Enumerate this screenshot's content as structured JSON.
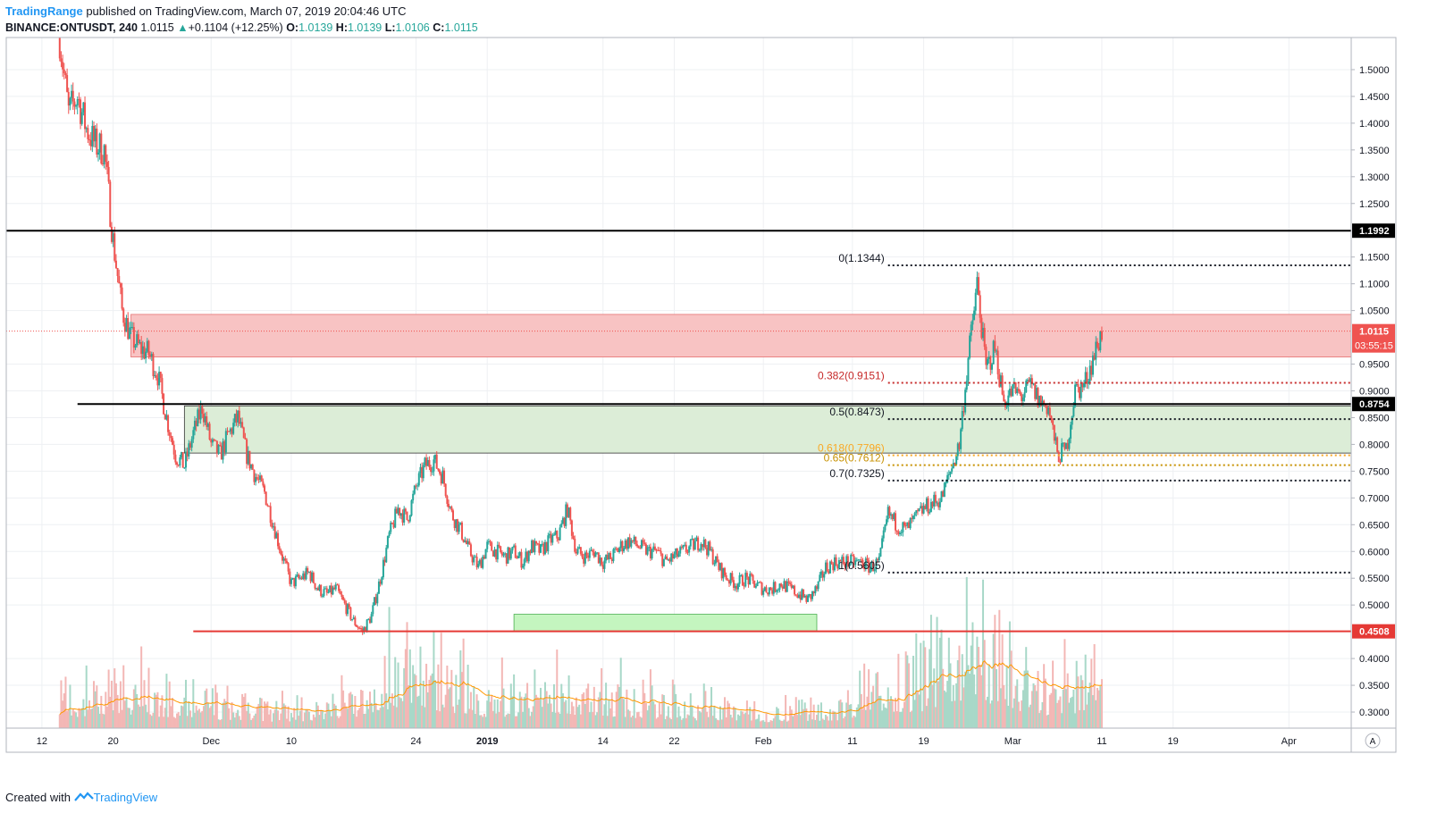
{
  "header": {
    "author": "TradingRange",
    "published": "published on TradingView.com, March 07, 2019 20:04:46 UTC",
    "symbol": "BINANCE:ONTUSDT, 240",
    "last": "1.0115",
    "arrow": "▲",
    "change": "+0.1104 (+12.25%)",
    "o_label": "O:",
    "o_value": "1.0139",
    "h_label": "H:",
    "h_value": "1.0139",
    "l_label": "L:",
    "l_value": "1.0106",
    "c_label": "C:",
    "c_value": "1.0115"
  },
  "footer": {
    "created": "Created with",
    "brand": "TradingView"
  },
  "colors": {
    "up": "#26a69a",
    "down": "#ef5350",
    "resistance_zone": "#f8c3c3",
    "support_zone": "#dcedd7",
    "target_box": "#c4f5bf",
    "red_line": "#e53935",
    "black_line": "#000000"
  },
  "chart_data": {
    "type": "candlestick",
    "ylim": [
      0.27,
      1.56
    ],
    "y_ticks": [
      "1.5000",
      "1.4500",
      "1.4000",
      "1.3500",
      "1.3000",
      "1.2500",
      "1.1500",
      "1.1000",
      "1.0500",
      "0.9500",
      "0.9000",
      "0.8500",
      "0.8000",
      "0.7500",
      "0.7000",
      "0.6500",
      "0.6000",
      "0.5500",
      "0.5000",
      "0.4000",
      "0.3500",
      "0.3000"
    ],
    "x_ticks": [
      "12",
      "20",
      "Dec",
      "10",
      "24",
      "2019",
      "14",
      "22",
      "Feb",
      "11",
      "19",
      "Mar",
      "11",
      "19",
      "Apr"
    ],
    "x_tick_dates": [
      "2018-11-12",
      "2018-11-20",
      "2018-12-01",
      "2018-12-10",
      "2018-12-24",
      "2019-01-01",
      "2019-01-14",
      "2019-01-22",
      "2019-02-01",
      "2019-02-11",
      "2019-02-19",
      "2019-03-01",
      "2019-03-11",
      "2019-03-19",
      "2019-04-01"
    ],
    "x_range": [
      "2018-11-08",
      "2019-04-08"
    ],
    "price_path": [
      [
        "2018-11-14",
        1.56
      ],
      [
        "2018-11-15",
        1.42
      ],
      [
        "2018-11-16",
        1.45
      ],
      [
        "2018-11-17",
        1.39
      ],
      [
        "2018-11-18",
        1.36
      ],
      [
        "2018-11-19",
        1.35
      ],
      [
        "2018-11-20",
        1.18
      ],
      [
        "2018-11-21",
        1.05
      ],
      [
        "2018-11-22",
        1.0
      ],
      [
        "2018-11-23",
        0.98
      ],
      [
        "2018-11-24",
        0.97
      ],
      [
        "2018-11-25",
        0.93
      ],
      [
        "2018-11-26",
        0.85
      ],
      [
        "2018-11-27",
        0.78
      ],
      [
        "2018-11-28",
        0.76
      ],
      [
        "2018-11-29",
        0.82
      ],
      [
        "2018-11-30",
        0.87
      ],
      [
        "2018-12-01",
        0.8
      ],
      [
        "2018-12-02",
        0.78
      ],
      [
        "2018-12-03",
        0.82
      ],
      [
        "2018-12-04",
        0.85
      ],
      [
        "2018-12-05",
        0.78
      ],
      [
        "2018-12-06",
        0.74
      ],
      [
        "2018-12-07",
        0.71
      ],
      [
        "2018-12-08",
        0.65
      ],
      [
        "2018-12-09",
        0.59
      ],
      [
        "2018-12-10",
        0.54
      ],
      [
        "2018-12-11",
        0.55
      ],
      [
        "2018-12-12",
        0.56
      ],
      [
        "2018-12-13",
        0.53
      ],
      [
        "2018-12-14",
        0.52
      ],
      [
        "2018-12-15",
        0.53
      ],
      [
        "2018-12-16",
        0.5
      ],
      [
        "2018-12-17",
        0.47
      ],
      [
        "2018-12-18",
        0.45
      ],
      [
        "2018-12-19",
        0.48
      ],
      [
        "2018-12-20",
        0.55
      ],
      [
        "2018-12-21",
        0.63
      ],
      [
        "2018-12-22",
        0.68
      ],
      [
        "2018-12-23",
        0.66
      ],
      [
        "2018-12-24",
        0.72
      ],
      [
        "2018-12-25",
        0.76
      ],
      [
        "2018-12-26",
        0.77
      ],
      [
        "2018-12-27",
        0.74
      ],
      [
        "2018-12-28",
        0.67
      ],
      [
        "2018-12-29",
        0.64
      ],
      [
        "2018-12-30",
        0.6
      ],
      [
        "2018-12-31",
        0.57
      ],
      [
        "2019-01-01",
        0.61
      ],
      [
        "2019-01-02",
        0.6
      ],
      [
        "2019-01-03",
        0.59
      ],
      [
        "2019-01-04",
        0.6
      ],
      [
        "2019-01-05",
        0.58
      ],
      [
        "2019-01-06",
        0.61
      ],
      [
        "2019-01-07",
        0.6
      ],
      [
        "2019-01-08",
        0.62
      ],
      [
        "2019-01-09",
        0.63
      ],
      [
        "2019-01-10",
        0.68
      ],
      [
        "2019-01-11",
        0.6
      ],
      [
        "2019-01-12",
        0.59
      ],
      [
        "2019-01-13",
        0.6
      ],
      [
        "2019-01-14",
        0.58
      ],
      [
        "2019-01-15",
        0.59
      ],
      [
        "2019-01-16",
        0.61
      ],
      [
        "2019-01-17",
        0.62
      ],
      [
        "2019-01-18",
        0.61
      ],
      [
        "2019-01-19",
        0.6
      ],
      [
        "2019-01-20",
        0.6
      ],
      [
        "2019-01-21",
        0.58
      ],
      [
        "2019-01-22",
        0.59
      ],
      [
        "2019-01-23",
        0.6
      ],
      [
        "2019-01-24",
        0.61
      ],
      [
        "2019-01-25",
        0.62
      ],
      [
        "2019-01-26",
        0.6
      ],
      [
        "2019-01-27",
        0.57
      ],
      [
        "2019-01-28",
        0.55
      ],
      [
        "2019-01-29",
        0.54
      ],
      [
        "2019-01-30",
        0.55
      ],
      [
        "2019-01-31",
        0.54
      ],
      [
        "2019-02-01",
        0.53
      ],
      [
        "2019-02-02",
        0.53
      ],
      [
        "2019-02-03",
        0.54
      ],
      [
        "2019-02-04",
        0.53
      ],
      [
        "2019-02-05",
        0.52
      ],
      [
        "2019-02-06",
        0.51
      ],
      [
        "2019-02-07",
        0.53
      ],
      [
        "2019-02-08",
        0.57
      ],
      [
        "2019-02-09",
        0.58
      ],
      [
        "2019-02-10",
        0.58
      ],
      [
        "2019-02-11",
        0.58
      ],
      [
        "2019-02-12",
        0.58
      ],
      [
        "2019-02-13",
        0.57
      ],
      [
        "2019-02-14",
        0.58
      ],
      [
        "2019-02-15",
        0.67
      ],
      [
        "2019-02-16",
        0.65
      ],
      [
        "2019-02-17",
        0.64
      ],
      [
        "2019-02-18",
        0.66
      ],
      [
        "2019-02-19",
        0.68
      ],
      [
        "2019-02-20",
        0.69
      ],
      [
        "2019-02-21",
        0.7
      ],
      [
        "2019-02-22",
        0.75
      ],
      [
        "2019-02-23",
        0.8
      ],
      [
        "2019-02-24",
        0.96
      ],
      [
        "2019-02-25",
        1.1
      ],
      [
        "2019-02-26",
        0.94
      ],
      [
        "2019-02-27",
        0.98
      ],
      [
        "2019-02-28",
        0.88
      ],
      [
        "2019-03-01",
        0.9
      ],
      [
        "2019-03-02",
        0.89
      ],
      [
        "2019-03-03",
        0.91
      ],
      [
        "2019-03-04",
        0.88
      ],
      [
        "2019-03-05",
        0.87
      ],
      [
        "2019-03-06",
        0.78
      ],
      [
        "2019-03-07",
        0.79
      ],
      [
        "2019-03-08",
        0.9
      ],
      [
        "2019-03-09",
        0.91
      ],
      [
        "2019-03-10",
        0.96
      ],
      [
        "2019-03-11",
        1.01
      ]
    ],
    "volume_profile": [
      [
        "2018-11-14",
        0.3
      ],
      [
        "2018-11-20",
        0.5
      ],
      [
        "2018-11-26",
        0.35
      ],
      [
        "2018-12-02",
        0.25
      ],
      [
        "2018-12-10",
        0.2
      ],
      [
        "2018-12-18",
        0.4
      ],
      [
        "2018-12-22",
        0.7
      ],
      [
        "2018-12-26",
        0.6
      ],
      [
        "2019-01-01",
        0.35
      ],
      [
        "2019-01-10",
        0.45
      ],
      [
        "2019-01-20",
        0.3
      ],
      [
        "2019-02-01",
        0.2
      ],
      [
        "2019-02-10",
        0.25
      ],
      [
        "2019-02-14",
        0.6
      ],
      [
        "2019-02-18",
        0.5
      ],
      [
        "2019-02-24",
        1.0
      ],
      [
        "2019-02-28",
        0.7
      ],
      [
        "2019-03-04",
        0.4
      ],
      [
        "2019-03-08",
        0.5
      ],
      [
        "2019-03-10",
        0.6
      ]
    ],
    "horizontal_lines": [
      {
        "value": 1.1992,
        "label": "1.1992",
        "color": "#000000",
        "start": "2018-11-08"
      },
      {
        "value": 0.8754,
        "label": "0.8754",
        "color": "#000000",
        "start": "2018-11-16"
      },
      {
        "value": 0.4508,
        "label": "0.4508",
        "color": "#e53935",
        "start": "2018-11-29"
      }
    ],
    "zones": [
      {
        "name": "resistance",
        "from": 0.9632,
        "to": 1.0428,
        "start": "2018-11-22"
      },
      {
        "name": "support",
        "from": 0.7838,
        "to": 0.8719,
        "start": "2018-11-28"
      },
      {
        "name": "target",
        "from": 0.4508,
        "to": 0.4827,
        "start": "2019-01-04",
        "end": "2019-02-07"
      }
    ],
    "fib_levels": [
      {
        "ratio": "0",
        "text": "0(1.1344)",
        "value": 1.1344,
        "color": "#131722"
      },
      {
        "ratio": "0.382",
        "text": "0.382(0.9151)",
        "value": 0.9151,
        "color": "#c62828"
      },
      {
        "ratio": "0.5",
        "text": "0.5(0.8473)",
        "value": 0.8473,
        "color": "#131722"
      },
      {
        "ratio": "0.618",
        "text": "0.618(0.7796)",
        "value": 0.7796,
        "color": "#f9a825"
      },
      {
        "ratio": "0.65",
        "text": "0.65(0.7612)",
        "value": 0.7612,
        "color": "#c79100"
      },
      {
        "ratio": "0.7",
        "text": "0.7(0.7325)",
        "value": 0.7325,
        "color": "#131722"
      },
      {
        "ratio": "1",
        "text": "1(0.5605)",
        "value": 0.5605,
        "color": "#131722"
      }
    ],
    "fib_start": "2019-02-15",
    "current_price": {
      "value": 1.0115,
      "label": "1.0115",
      "countdown": "03:55:15"
    },
    "scale_mode": "A"
  }
}
